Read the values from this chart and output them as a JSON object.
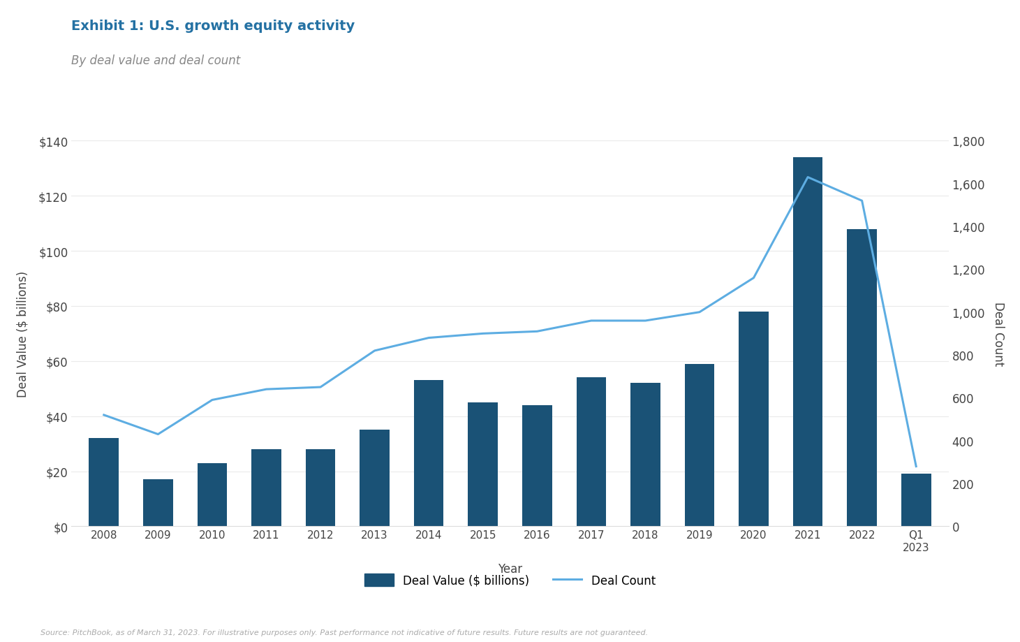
{
  "title": "Exhibit 1: U.S. growth equity activity",
  "subtitle": "By deal value and deal count",
  "xlabel": "Year",
  "ylabel_left": "Deal Value ($ billions)",
  "ylabel_right": "Deal Count",
  "source_text": "Source: PitchBook, as of March 31, 2023. For illustrative purposes only. Past performance not indicative of future results. Future results are not guaranteed.",
  "years": [
    "2008",
    "2009",
    "2010",
    "2011",
    "2012",
    "2013",
    "2014",
    "2015",
    "2016",
    "2017",
    "2018",
    "2019",
    "2020",
    "2021",
    "2022",
    "Q1\n2023"
  ],
  "deal_value": [
    32,
    17,
    23,
    28,
    28,
    35,
    53,
    45,
    44,
    54,
    52,
    59,
    78,
    134,
    108,
    19
  ],
  "deal_count": [
    520,
    430,
    590,
    640,
    650,
    820,
    880,
    900,
    910,
    960,
    960,
    1000,
    1160,
    1630,
    1520,
    280
  ],
  "bar_color": "#1a5276",
  "line_color": "#5dade2",
  "title_color": "#2471a3",
  "subtitle_color": "#888888",
  "source_color": "#aaaaaa",
  "background_color": "#ffffff",
  "ylim_left": [
    0,
    140
  ],
  "ylim_right": [
    0,
    1800
  ],
  "yticks_left": [
    0,
    20,
    40,
    60,
    80,
    100,
    120,
    140
  ],
  "yticks_right": [
    0,
    200,
    400,
    600,
    800,
    1000,
    1200,
    1400,
    1600,
    1800
  ],
  "legend_label_bar": "Deal Value ($ billions)",
  "legend_label_line": "Deal Count"
}
